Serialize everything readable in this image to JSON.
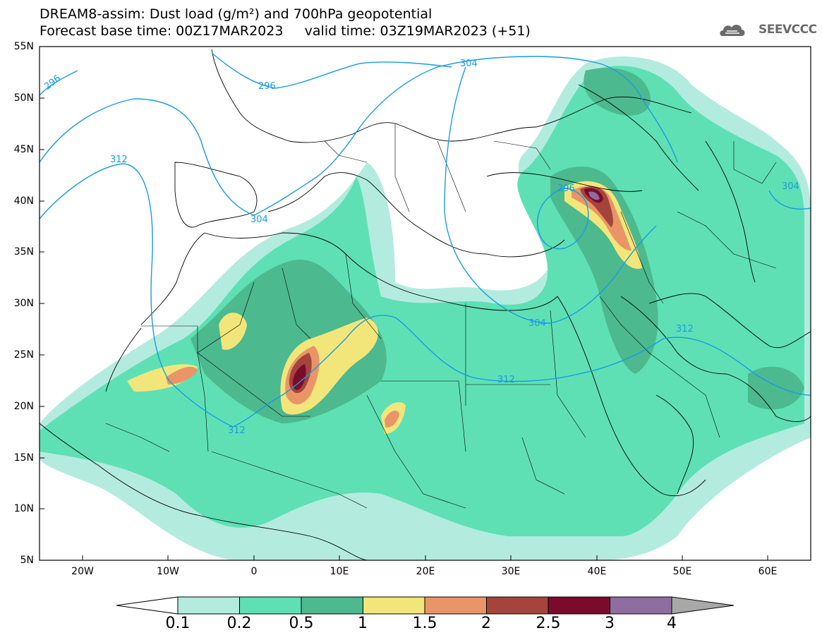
{
  "header": {
    "line1": "DREAM8-assim: Dust load (g/m²) and 700hPa geopotential",
    "line2": "Forecast base time: 00Z17MAR2023     valid time: 03Z19MAR2023 (+51)"
  },
  "logo": {
    "text": "SEEVCCC",
    "icon": "cloud-logo-icon"
  },
  "map": {
    "lat_labels": [
      "55N",
      "50N",
      "45N",
      "40N",
      "35N",
      "30N",
      "25N",
      "20N",
      "15N",
      "10N",
      "5N"
    ],
    "lon_labels": [
      "20W",
      "10W",
      "0",
      "10E",
      "20E",
      "30E",
      "40E",
      "50E",
      "60E"
    ],
    "contour_labels": [
      "296",
      "296",
      "304",
      "312",
      "304",
      "296",
      "304",
      "304",
      "312",
      "312",
      "312"
    ],
    "lon_range": [
      -25,
      65
    ],
    "lat_range": [
      5,
      55
    ]
  },
  "colorbar": {
    "labels": [
      "0.1",
      "0.2",
      "0.5",
      "1",
      "1.5",
      "2",
      "2.5",
      "3",
      "4"
    ],
    "colors": [
      "#b3ecdf",
      "#5ee0b4",
      "#4cb98f",
      "#f2e67a",
      "#e99567",
      "#a4443b",
      "#7b0b2d",
      "#8f6da0"
    ],
    "under_color": "#ffffff",
    "over_color": "#a8a8a8"
  }
}
